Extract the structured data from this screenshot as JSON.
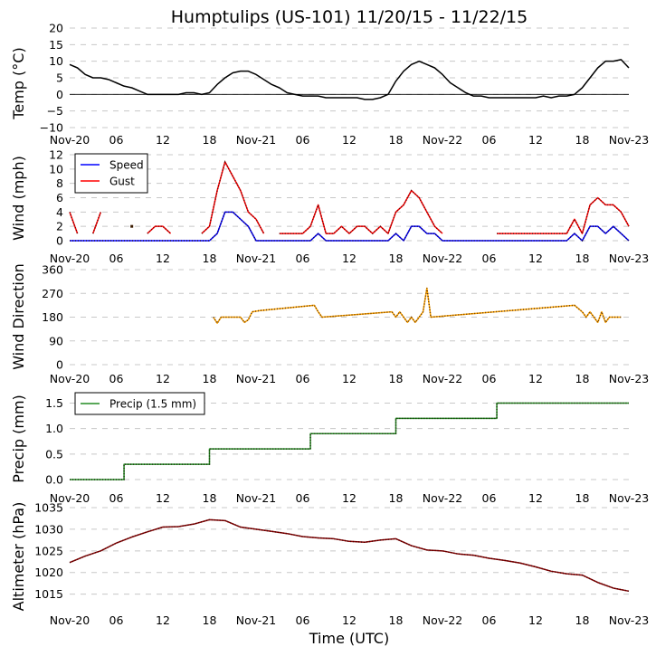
{
  "chart_data": [
    {
      "type": "line",
      "panel": "temperature",
      "title": "Humptulips (US-101) 11/20/15 - 11/22/15",
      "ylabel": "Temp ($^\\circ$C)",
      "ylabel_display": "Temp (°C)",
      "ylim": [
        -10,
        20
      ],
      "yticks": [
        -10,
        -5,
        0,
        5,
        10,
        15,
        20
      ],
      "ytick_labels": [
        "−10",
        "−5",
        "0",
        "5",
        "10",
        "15",
        "20"
      ],
      "grid": "horizontal-dashed",
      "zero_line": true,
      "x_hours": [
        0,
        1,
        2,
        3,
        4,
        5,
        6,
        7,
        8,
        9,
        10,
        11,
        12,
        13,
        14,
        15,
        16,
        17,
        18,
        19,
        20,
        21,
        22,
        23,
        24,
        25,
        26,
        27,
        28,
        29,
        30,
        31,
        32,
        33,
        34,
        35,
        36,
        37,
        38,
        39,
        40,
        41,
        42,
        43,
        44,
        45,
        46,
        47,
        48,
        49,
        50,
        51,
        52,
        53,
        54,
        55,
        56,
        57,
        58,
        59,
        60,
        61,
        62,
        63,
        64,
        65,
        66,
        67,
        68,
        69,
        70,
        71,
        72
      ],
      "series": [
        {
          "name": "Temp",
          "color": "#000000",
          "values": [
            9,
            8,
            6,
            5,
            5,
            4.5,
            3.5,
            2.5,
            2,
            1,
            0,
            0,
            0,
            0,
            0,
            0.5,
            0.5,
            0,
            0.5,
            3,
            5,
            6.5,
            7,
            7,
            6,
            4.5,
            3,
            2,
            0.5,
            0,
            -0.5,
            -0.5,
            -0.5,
            -1,
            -1,
            -1,
            -1,
            -1,
            -1.5,
            -1.5,
            -1,
            0,
            4,
            7,
            9,
            10,
            9,
            8,
            6,
            3.5,
            2,
            0.5,
            -0.5,
            -0.5,
            -1,
            -1,
            -1,
            -1,
            -1,
            -1,
            -1,
            -0.5,
            -1,
            -0.5,
            -0.5,
            0,
            2,
            5,
            8,
            10,
            10,
            10.5,
            8
          ]
        }
      ],
      "xtick_labels": [
        "Nov-20",
        "06",
        "12",
        "18",
        "Nov-21",
        "06",
        "12",
        "18",
        "Nov-22",
        "06",
        "12",
        "18",
        "Nov-23"
      ]
    },
    {
      "type": "line",
      "panel": "wind",
      "ylabel": "Wind (mph)",
      "ylim": [
        0,
        12
      ],
      "yticks": [
        0,
        2,
        4,
        6,
        8,
        10,
        12
      ],
      "ytick_labels": [
        "0",
        "2",
        "4",
        "6",
        "8",
        "10",
        "12"
      ],
      "legend": {
        "placement": "top-left",
        "entries": [
          "Speed",
          "Gust"
        ]
      },
      "x_hours": [
        0,
        1,
        2,
        3,
        4,
        5,
        6,
        7,
        8,
        9,
        10,
        11,
        12,
        13,
        14,
        15,
        16,
        17,
        18,
        19,
        20,
        21,
        22,
        23,
        24,
        25,
        26,
        27,
        28,
        29,
        30,
        31,
        32,
        33,
        34,
        35,
        36,
        37,
        38,
        39,
        40,
        41,
        42,
        43,
        44,
        45,
        46,
        47,
        48,
        49,
        50,
        51,
        52,
        53,
        54,
        55,
        56,
        57,
        58,
        59,
        60,
        61,
        62,
        63,
        64,
        65,
        66,
        67,
        68,
        69,
        70,
        71,
        72
      ],
      "series": [
        {
          "name": "Speed",
          "color": "#0000ff",
          "values": [
            0,
            0,
            0,
            0,
            0,
            0,
            0,
            0,
            0,
            0,
            0,
            0,
            0,
            0,
            0,
            0,
            0,
            0,
            0,
            1,
            4,
            4,
            3,
            2,
            0,
            0,
            0,
            0,
            0,
            0,
            0,
            0,
            1,
            0,
            0,
            0,
            0,
            0,
            0,
            0,
            0,
            0,
            1,
            0,
            2,
            2,
            1,
            1,
            0,
            0,
            0,
            0,
            0,
            0,
            0,
            0,
            0,
            0,
            0,
            0,
            0,
            0,
            0,
            0,
            0,
            1,
            0,
            2,
            2,
            1,
            2,
            1,
            0
          ]
        },
        {
          "name": "Gust",
          "color": "#ff0000",
          "values": [
            4,
            1,
            null,
            1,
            4,
            null,
            null,
            null,
            2,
            null,
            1,
            2,
            2,
            1,
            null,
            null,
            null,
            1,
            2,
            7,
            11,
            9,
            7,
            4,
            3,
            1,
            null,
            1,
            1,
            1,
            1,
            2,
            5,
            1,
            1,
            2,
            1,
            2,
            2,
            1,
            2,
            1,
            4,
            5,
            7,
            6,
            4,
            2,
            1,
            null,
            null,
            null,
            null,
            null,
            null,
            1,
            1,
            1,
            1,
            1,
            1,
            1,
            1,
            1,
            1,
            3,
            1,
            5,
            6,
            5,
            5,
            4,
            2
          ]
        }
      ],
      "xtick_labels": [
        "Nov-20",
        "06",
        "12",
        "18",
        "Nov-21",
        "06",
        "12",
        "18",
        "Nov-22",
        "06",
        "12",
        "18",
        "Nov-23"
      ]
    },
    {
      "type": "line",
      "panel": "wind-direction",
      "ylabel": "Wind Direction",
      "ylim": [
        0,
        360
      ],
      "yticks": [
        0,
        90,
        180,
        270,
        360
      ],
      "ytick_labels": [
        "0",
        "90",
        "180",
        "270",
        "360"
      ],
      "x_hours": [
        18.5,
        19,
        19.5,
        20,
        20.5,
        21,
        21.5,
        22,
        22.5,
        23,
        23.5,
        24.5,
        31.5,
        32,
        32.5,
        41.5,
        42,
        42.5,
        43,
        43.5,
        44,
        44.5,
        45,
        45.5,
        46,
        46.5,
        65,
        66,
        66.5,
        67,
        67.5,
        68,
        68.5,
        69,
        69.5,
        70,
        70.5,
        71
      ],
      "series": [
        {
          "name": "Direction",
          "color": "#ffa500",
          "values": [
            180,
            157,
            180,
            180,
            180,
            180,
            180,
            180,
            160,
            170,
            200,
            205,
            225,
            200,
            180,
            200,
            180,
            200,
            180,
            160,
            180,
            160,
            180,
            200,
            290,
            180,
            225,
            200,
            180,
            200,
            180,
            160,
            200,
            160,
            180,
            180,
            180,
            180
          ]
        }
      ],
      "xtick_labels": [
        "Nov-20",
        "06",
        "12",
        "18",
        "Nov-21",
        "06",
        "12",
        "18",
        "Nov-22",
        "06",
        "12",
        "18",
        "Nov-23"
      ]
    },
    {
      "type": "line",
      "panel": "precip",
      "ylabel": "Precip (mm)",
      "ylim": [
        0,
        1.65
      ],
      "yticks": [
        0.0,
        0.5,
        1.0,
        1.5
      ],
      "ytick_labels": [
        "0.0",
        "0.5",
        "1.0",
        "1.5"
      ],
      "legend": {
        "placement": "top-left",
        "entries": [
          "Precip (1.5 mm)"
        ]
      },
      "step_x_hours": [
        0,
        7,
        7,
        18,
        18,
        31,
        31,
        42,
        42,
        55,
        55,
        72
      ],
      "series": [
        {
          "name": "Precip (1.5 mm)",
          "color": "#228b22",
          "values": [
            0.0,
            0.0,
            0.3,
            0.3,
            0.6,
            0.6,
            0.9,
            0.9,
            1.2,
            1.2,
            1.5,
            1.5
          ]
        }
      ],
      "xtick_labels": [
        "Nov-20",
        "06",
        "12",
        "18",
        "Nov-21",
        "06",
        "12",
        "18",
        "Nov-22",
        "06",
        "12",
        "18",
        "Nov-23"
      ]
    },
    {
      "type": "line",
      "panel": "altimeter",
      "ylabel": "Altimeter (hPa)",
      "xlabel": "Time (UTC)",
      "ylim": [
        1012,
        1035
      ],
      "yticks": [
        1015,
        1020,
        1025,
        1030,
        1035
      ],
      "ytick_labels": [
        "1015",
        "1020",
        "1025",
        "1030",
        "1035"
      ],
      "x_hours": [
        0,
        2,
        4,
        6,
        8,
        10,
        12,
        14,
        16,
        18,
        20,
        22,
        24,
        26,
        28,
        30,
        32,
        34,
        36,
        38,
        40,
        42,
        44,
        46,
        48,
        50,
        52,
        54,
        56,
        58,
        60,
        62,
        64,
        66,
        68,
        70,
        72
      ],
      "series": [
        {
          "name": "Altimeter",
          "color": "#8b0000",
          "values": [
            1022.3,
            1023.8,
            1025,
            1026.8,
            1028.2,
            1029.4,
            1030.5,
            1030.6,
            1031.2,
            1032.2,
            1032,
            1030.5,
            1030,
            1029.5,
            1029,
            1028.3,
            1028,
            1027.8,
            1027.2,
            1027,
            1027.5,
            1027.8,
            1026.2,
            1025.2,
            1025,
            1024.3,
            1024,
            1023.3,
            1022.8,
            1022.2,
            1021.3,
            1020.3,
            1019.7,
            1019.4,
            1017.7,
            1016.4,
            1015.7
          ]
        }
      ],
      "xtick_labels": [
        "Nov-20",
        "06",
        "12",
        "18",
        "Nov-21",
        "06",
        "12",
        "18",
        "Nov-22",
        "06",
        "12",
        "18",
        "Nov-23"
      ]
    }
  ]
}
